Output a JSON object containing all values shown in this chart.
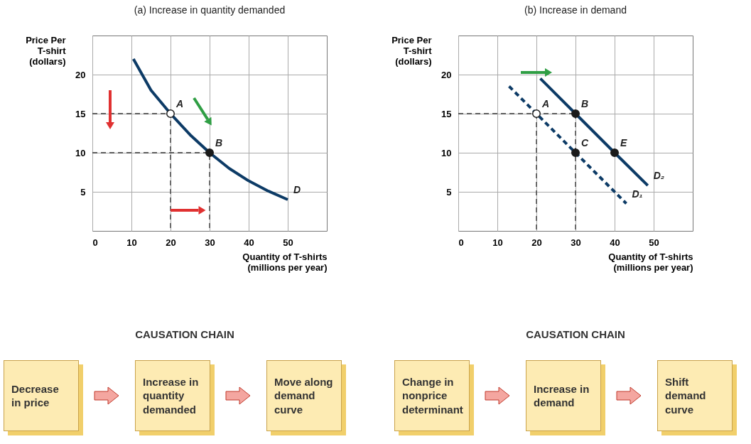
{
  "chart_data": [
    {
      "type": "line",
      "title": "(a) Increase in quantity demanded",
      "xlabel": "Quantity of T-shirts\n(millions per year)",
      "ylabel": "Price Per\nT-shirt\n(dollars)",
      "xlim": [
        0,
        60
      ],
      "ylim": [
        0,
        25
      ],
      "xticks": [
        0,
        10,
        20,
        30,
        40,
        50
      ],
      "yticks": [
        5,
        10,
        15,
        20
      ],
      "grid": true,
      "series": [
        {
          "type": "line",
          "color": "#0d3b66",
          "x": [
            10.5,
            15,
            20,
            25,
            30,
            35,
            40,
            45,
            50
          ],
          "values": [
            22,
            18,
            15,
            12.3,
            10,
            8,
            6.4,
            5.1,
            4
          ]
        },
        {
          "type": "line",
          "color": "#333333",
          "line_style": "dashed",
          "x": [
            0,
            20,
            20
          ],
          "values": [
            15,
            15,
            0
          ]
        },
        {
          "type": "line",
          "color": "#333333",
          "line_style": "dashed",
          "x": [
            0,
            30,
            30
          ],
          "values": [
            10,
            10,
            0
          ]
        },
        {
          "type": "scatter",
          "color": "#ffffff",
          "marker": "circle",
          "x": [
            20
          ],
          "values": [
            15
          ]
        },
        {
          "type": "scatter",
          "color": "#1a1a1a",
          "marker": "circle",
          "x": [
            30
          ],
          "values": [
            10
          ]
        }
      ],
      "annotations": [
        {
          "text": "A",
          "x": 20,
          "y": 15
        },
        {
          "text": "B",
          "x": 30,
          "y": 10
        },
        {
          "text": "D",
          "x": 50,
          "y": 4
        }
      ]
    },
    {
      "type": "line",
      "title": "(b) Increase in demand",
      "xlabel": "Quantity of T-shirts\n(millions per year)",
      "ylabel": "Price Per\nT-shirt\n(dollars)",
      "xlim": [
        0,
        60
      ],
      "ylim": [
        0,
        25
      ],
      "xticks": [
        0,
        10,
        20,
        30,
        40,
        50
      ],
      "yticks": [
        5,
        10,
        15,
        20
      ],
      "grid": true,
      "series": [
        {
          "type": "line",
          "color": "#0d3b66",
          "line_style": "dashed",
          "x": [
            13,
            20,
            30,
            43
          ],
          "values": [
            18.5,
            15,
            10,
            3.5
          ]
        },
        {
          "type": "line",
          "color": "#0d3b66",
          "x": [
            21,
            30,
            40,
            48.5
          ],
          "values": [
            19.5,
            15,
            10,
            5.8
          ]
        },
        {
          "type": "line",
          "color": "#333333",
          "line_style": "dashed",
          "x": [
            0,
            30
          ],
          "values": [
            15,
            15
          ]
        },
        {
          "type": "line",
          "color": "#333333",
          "line_style": "dashed",
          "x": [
            20,
            20
          ],
          "values": [
            15,
            0
          ]
        },
        {
          "type": "line",
          "color": "#333333",
          "line_style": "dashed",
          "x": [
            30,
            30
          ],
          "values": [
            15,
            0
          ]
        },
        {
          "type": "scatter",
          "color": "#ffffff",
          "marker": "circle",
          "x": [
            20
          ],
          "values": [
            15
          ]
        },
        {
          "type": "scatter",
          "color": "#1a1a1a",
          "marker": "circle",
          "x": [
            30,
            30,
            40
          ],
          "values": [
            15,
            10,
            10
          ]
        }
      ],
      "annotations": [
        {
          "text": "A",
          "x": 20,
          "y": 15
        },
        {
          "text": "B",
          "x": 30,
          "y": 15
        },
        {
          "text": "C",
          "x": 30,
          "y": 10
        },
        {
          "text": "E",
          "x": 40,
          "y": 10
        },
        {
          "text": "D₂",
          "x": 48.5,
          "y": 5.8
        },
        {
          "text": "D₁",
          "x": 43,
          "y": 3.5
        }
      ]
    },
    {
      "type": "other",
      "title": "CAUSATION CHAIN",
      "annotations": [
        "Decrease in price",
        "Increase in quantity demanded",
        "Move along demand curve"
      ]
    },
    {
      "type": "other",
      "title": "CAUSATION CHAIN",
      "annotations": [
        "Change in nonprice determinant",
        "Increase in demand",
        "Shift demand curve"
      ]
    }
  ]
}
